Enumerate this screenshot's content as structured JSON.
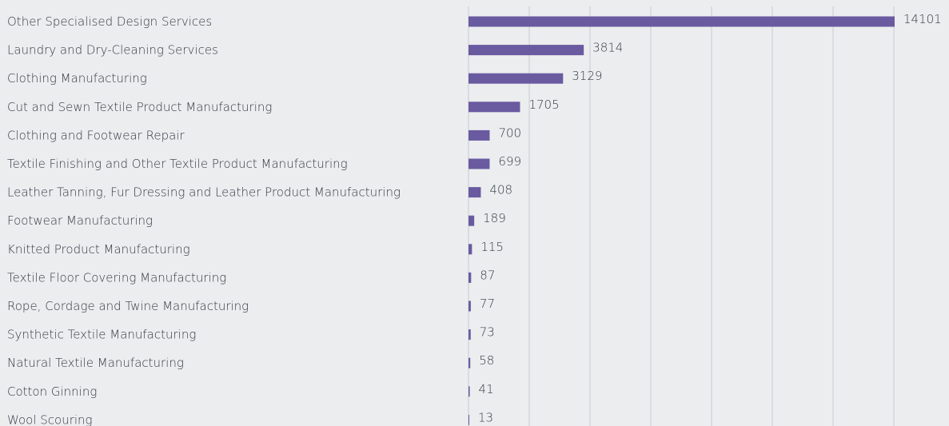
{
  "colors": {
    "bar": "#6a5aa0",
    "background": "#ebedef",
    "grid": "#c8ccd0",
    "text": "#333a40"
  },
  "chart_data": {
    "type": "bar",
    "orientation": "horizontal",
    "categories": [
      "Other Specialised Design Services",
      "Laundry and Dry-Cleaning Services",
      "Clothing Manufacturing",
      "Cut and Sewn Textile Product Manufacturing",
      "Clothing and Footwear Repair",
      "Textile Finishing and Other Textile Product Manufacturing",
      "Leather Tanning, Fur Dressing and Leather Product Manufacturing",
      "Footwear Manufacturing",
      "Knitted Product Manufacturing",
      "Textile Floor Covering Manufacturing",
      "Rope, Cordage and Twine Manufacturing",
      "Synthetic Textile Manufacturing",
      "Natural Textile Manufacturing",
      "Cotton Ginning",
      "Wool Scouring"
    ],
    "values": [
      14101,
      3814,
      3129,
      1705,
      700,
      699,
      408,
      189,
      115,
      87,
      77,
      73,
      58,
      41,
      13
    ],
    "xlim": [
      0,
      14101
    ],
    "grid": true,
    "legend": "none"
  }
}
